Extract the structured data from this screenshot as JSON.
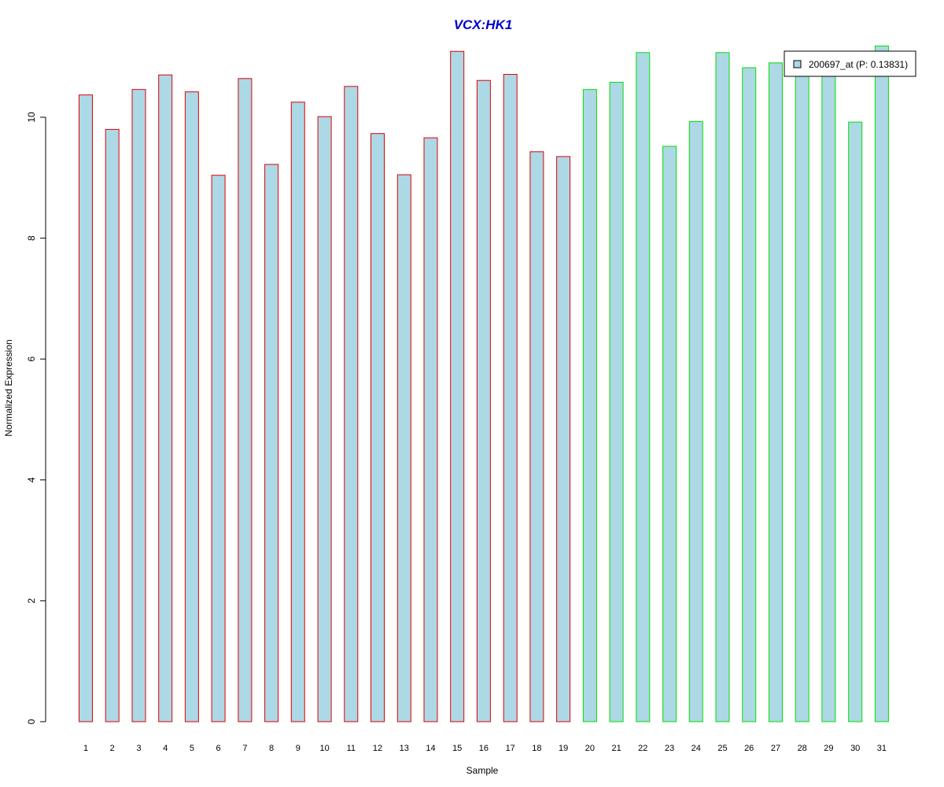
{
  "chart_data": {
    "type": "bar",
    "title": "VCX:HK1",
    "xlabel": "Sample",
    "ylabel": "Normalized Expression",
    "categories": [
      "1",
      "2",
      "3",
      "4",
      "5",
      "6",
      "7",
      "8",
      "9",
      "10",
      "11",
      "12",
      "13",
      "14",
      "15",
      "16",
      "17",
      "18",
      "19",
      "20",
      "21",
      "22",
      "23",
      "24",
      "25",
      "26",
      "27",
      "28",
      "29",
      "30",
      "31"
    ],
    "series": [
      {
        "name": "200697_at (P: 0.13831)",
        "values": [
          10.37,
          9.8,
          10.46,
          10.7,
          10.42,
          9.04,
          10.64,
          9.22,
          10.25,
          10.01,
          10.51,
          9.73,
          9.05,
          9.66,
          11.09,
          10.61,
          10.71,
          9.43,
          9.35,
          10.46,
          10.58,
          11.07,
          9.52,
          9.93,
          11.07,
          10.82,
          10.9,
          10.84,
          10.86,
          9.92,
          11.18
        ]
      }
    ],
    "bar_fill": "#ADD8E6",
    "group_colors": {
      "group1": "#E00000",
      "group2": "#00E000"
    },
    "group1_count": 19,
    "title_color": "#0000CC",
    "ylim": [
      0,
      11.2
    ],
    "yticks": [
      0,
      2,
      4,
      6,
      8,
      10
    ],
    "grid": false,
    "legend_position": "top-right"
  }
}
